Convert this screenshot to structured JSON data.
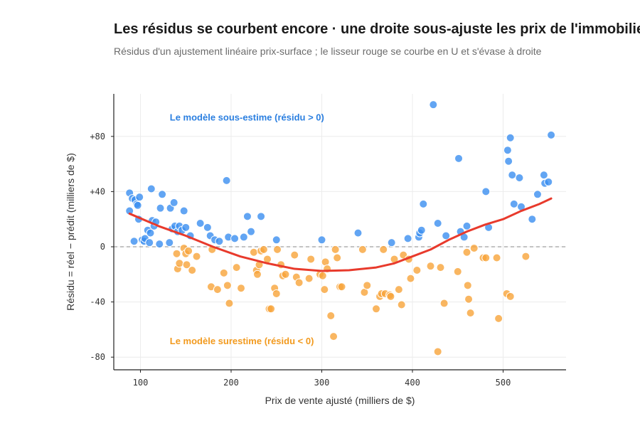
{
  "chart_data": {
    "type": "scatter",
    "title": "Les résidus se courbent encore · une droite sous-ajuste les prix de l'immobilier",
    "subtitle": "Résidus d'un ajustement linéaire prix-surface ; le lisseur rouge se courbe en U et s'évase à droite",
    "xlabel": "Prix de vente ajusté (milliers de $)",
    "ylabel": "Résidu = réel − prédit (milliers de $)",
    "xlim": [
      72,
      570
    ],
    "ylim": [
      -90,
      108
    ],
    "xticks": [
      100,
      200,
      300,
      400,
      500
    ],
    "xtick_labels": [
      "100",
      "200",
      "300",
      "400",
      "500"
    ],
    "yticks": [
      80,
      40,
      0,
      -40,
      -80
    ],
    "ytick_labels": [
      "+80",
      "+40",
      "0",
      "-40",
      "-80"
    ],
    "grid": true,
    "zero_line": true,
    "colors": {
      "positive": "#3b8ff0",
      "negative": "#f7a43a",
      "smoother": "#e83a2c",
      "grid": "#ececec",
      "annot_pos": "#2b7fe0",
      "annot_neg": "#f29a1e"
    },
    "annotations": [
      {
        "text": "Le modèle sous-estime (résidu > 0)",
        "x": 130,
        "y": 94,
        "color": "positive"
      },
      {
        "text": "Le modèle surestime (résidu < 0)",
        "x": 130,
        "y": -68,
        "color": "negative"
      }
    ],
    "series": [
      {
        "values": [
          [
            88,
            39
          ],
          [
            88,
            26
          ],
          [
            91,
            35
          ],
          [
            93,
            4
          ],
          [
            94,
            34
          ],
          [
            96,
            31
          ],
          [
            97,
            30
          ],
          [
            98,
            20
          ],
          [
            99,
            36
          ],
          [
            102,
            5
          ],
          [
            104,
            4
          ],
          [
            105,
            6
          ],
          [
            108,
            12
          ],
          [
            110,
            3
          ],
          [
            111,
            10
          ],
          [
            112,
            42
          ],
          [
            113,
            19
          ],
          [
            115,
            15
          ],
          [
            117,
            18
          ],
          [
            121,
            2
          ],
          [
            122,
            28
          ],
          [
            124,
            38
          ],
          [
            132,
            3
          ],
          [
            133,
            28
          ],
          [
            135,
            13
          ],
          [
            137,
            32
          ],
          [
            138,
            15
          ],
          [
            141,
            11
          ],
          [
            143,
            15
          ],
          [
            146,
            12
          ],
          [
            148,
            26
          ],
          [
            150,
            14
          ],
          [
            155,
            8
          ],
          [
            166,
            17
          ],
          [
            174,
            14
          ],
          [
            177,
            8
          ],
          [
            182,
            5
          ],
          [
            187,
            4
          ],
          [
            195,
            48
          ],
          [
            197,
            7
          ],
          [
            204,
            6
          ],
          [
            214,
            7
          ],
          [
            218,
            22
          ],
          [
            222,
            11
          ],
          [
            233,
            22
          ],
          [
            250,
            5
          ],
          [
            300,
            5
          ],
          [
            340,
            10
          ],
          [
            377,
            3
          ],
          [
            395,
            6
          ],
          [
            407,
            7
          ],
          [
            408,
            10
          ],
          [
            410,
            12
          ],
          [
            412,
            31
          ],
          [
            423,
            103
          ],
          [
            428,
            17
          ],
          [
            437,
            8
          ],
          [
            451,
            64
          ],
          [
            453,
            11
          ],
          [
            457,
            7
          ],
          [
            460,
            15
          ],
          [
            481,
            40
          ],
          [
            484,
            14
          ],
          [
            505,
            70
          ],
          [
            506,
            62
          ],
          [
            508,
            79
          ],
          [
            510,
            52
          ],
          [
            512,
            31
          ],
          [
            518,
            50
          ],
          [
            520,
            29
          ],
          [
            532,
            20
          ],
          [
            538,
            38
          ],
          [
            545,
            52
          ],
          [
            546,
            46
          ],
          [
            550,
            47
          ],
          [
            553,
            81
          ]
        ]
      },
      {
        "values": [
          [
            140,
            -5
          ],
          [
            141,
            -16
          ],
          [
            143,
            -12
          ],
          [
            148,
            -1
          ],
          [
            150,
            -5
          ],
          [
            151,
            -13
          ],
          [
            153,
            -3
          ],
          [
            157,
            -17
          ],
          [
            162,
            -7
          ],
          [
            178,
            -29
          ],
          [
            179,
            -2
          ],
          [
            185,
            -31
          ],
          [
            192,
            -19
          ],
          [
            196,
            -28
          ],
          [
            198,
            -41
          ],
          [
            206,
            -15
          ],
          [
            211,
            -30
          ],
          [
            225,
            -4
          ],
          [
            228,
            -17
          ],
          [
            229,
            -20
          ],
          [
            231,
            -13
          ],
          [
            233,
            -3
          ],
          [
            236,
            -2
          ],
          [
            240,
            -9
          ],
          [
            242,
            -45
          ],
          [
            244,
            -45
          ],
          [
            248,
            -30
          ],
          [
            250,
            -34
          ],
          [
            251,
            -2
          ],
          [
            255,
            -13
          ],
          [
            257,
            -21
          ],
          [
            260,
            -20
          ],
          [
            270,
            -6
          ],
          [
            272,
            -22
          ],
          [
            275,
            -26
          ],
          [
            286,
            -23
          ],
          [
            288,
            -9
          ],
          [
            298,
            -20
          ],
          [
            301,
            -21
          ],
          [
            303,
            -31
          ],
          [
            304,
            -11
          ],
          [
            306,
            -16
          ],
          [
            310,
            -50
          ],
          [
            313,
            -65
          ],
          [
            315,
            -2
          ],
          [
            317,
            -8
          ],
          [
            320,
            -29
          ],
          [
            322,
            -29
          ],
          [
            345,
            -2
          ],
          [
            347,
            -33
          ],
          [
            350,
            -28
          ],
          [
            360,
            -45
          ],
          [
            364,
            -36
          ],
          [
            366,
            -34
          ],
          [
            368,
            -2
          ],
          [
            370,
            -34
          ],
          [
            375,
            -35
          ],
          [
            376,
            -36
          ],
          [
            380,
            -9
          ],
          [
            385,
            -31
          ],
          [
            388,
            -42
          ],
          [
            390,
            -6
          ],
          [
            396,
            -9
          ],
          [
            398,
            -23
          ],
          [
            405,
            -17
          ],
          [
            420,
            -14
          ],
          [
            428,
            -76
          ],
          [
            431,
            -15
          ],
          [
            435,
            -41
          ],
          [
            450,
            -18
          ],
          [
            460,
            -4
          ],
          [
            461,
            -28
          ],
          [
            462,
            -38
          ],
          [
            464,
            -48
          ],
          [
            468,
            -1
          ],
          [
            478,
            -8
          ],
          [
            481,
            -8
          ],
          [
            493,
            -8
          ],
          [
            495,
            -52
          ],
          [
            504,
            -34
          ],
          [
            508,
            -36
          ],
          [
            525,
            -7
          ]
        ]
      }
    ],
    "smoother": [
      [
        88,
        24
      ],
      [
        120,
        15
      ],
      [
        150,
        8
      ],
      [
        180,
        0
      ],
      [
        210,
        -7
      ],
      [
        240,
        -12
      ],
      [
        270,
        -16
      ],
      [
        300,
        -17.5
      ],
      [
        330,
        -17
      ],
      [
        360,
        -15
      ],
      [
        380,
        -12
      ],
      [
        400,
        -7
      ],
      [
        420,
        -2
      ],
      [
        440,
        5
      ],
      [
        460,
        11
      ],
      [
        480,
        16
      ],
      [
        500,
        20
      ],
      [
        520,
        26
      ],
      [
        540,
        31
      ],
      [
        553,
        35
      ]
    ]
  }
}
